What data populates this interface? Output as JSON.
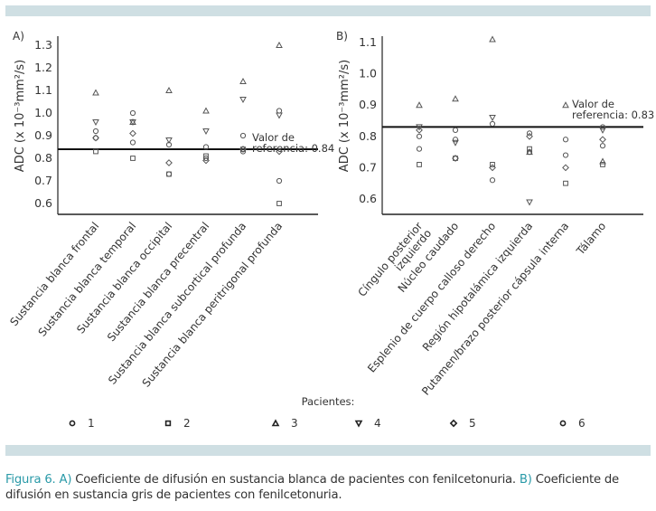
{
  "colors": {
    "band": "#cfdfe3",
    "accent": "#2a9aa8",
    "marker": "#555555"
  },
  "legend": {
    "title": "Pacientes:",
    "items": [
      {
        "label": "1",
        "symbol": "circle"
      },
      {
        "label": "2",
        "symbol": "square"
      },
      {
        "label": "3",
        "symbol": "triangle-up"
      },
      {
        "label": "4",
        "symbol": "triangle-down"
      },
      {
        "label": "5",
        "symbol": "diamond"
      },
      {
        "label": "6",
        "symbol": "circle"
      }
    ]
  },
  "chart_data": [
    {
      "type": "scatter",
      "panel": "A)",
      "ylabel": "ADC (x 10⁻³mm²/s)",
      "ylim": [
        0.55,
        1.35
      ],
      "yticks": [
        "0.6",
        "0.7",
        "0.8",
        "0.9",
        "1.0",
        "1.1",
        "1.2",
        "1.3"
      ],
      "reference": {
        "value": 0.84,
        "label1": "Valor de",
        "label2": "referencia: 0.84"
      },
      "categories": [
        [
          "Sustancia blanca frontal"
        ],
        [
          "Sustancia blanca temporal"
        ],
        [
          "Sustancia blanca occipital"
        ],
        [
          "Sustancia blanca precentral"
        ],
        [
          "Sustancia blanca subcortical profunda"
        ],
        [
          "Sustancia blanca peritrigonal profunda"
        ]
      ],
      "series": [
        {
          "name": "1",
          "symbol": "circle",
          "values": [
            0.92,
            1.0,
            0.86,
            0.85,
            0.9,
            1.01
          ]
        },
        {
          "name": "2",
          "symbol": "square",
          "values": [
            0.83,
            0.8,
            0.73,
            0.81,
            0.84,
            0.6
          ]
        },
        {
          "name": "3",
          "symbol": "triangle-up",
          "values": [
            1.09,
            0.96,
            1.1,
            1.01,
            1.14,
            1.3
          ]
        },
        {
          "name": "4",
          "symbol": "triangle-down",
          "values": [
            0.96,
            0.96,
            0.88,
            0.92,
            1.06,
            0.99
          ]
        },
        {
          "name": "5",
          "symbol": "diamond",
          "values": [
            0.89,
            0.91,
            0.78,
            0.79,
            0.84,
            0.83
          ]
        },
        {
          "name": "6",
          "symbol": "circle",
          "values": [
            0.89,
            0.87,
            0.73,
            0.8,
            0.83,
            0.7
          ]
        }
      ]
    },
    {
      "type": "scatter",
      "panel": "B)",
      "ylabel": "ADC (x 10⁻³mm²/s)",
      "ylim": [
        0.55,
        1.13
      ],
      "yticks": [
        "0.6",
        "0.7",
        "0.8",
        "0.9",
        "1.0",
        "1.1"
      ],
      "reference": {
        "value": 0.83,
        "label1": "Valor de",
        "label2": "referencia: 0.83"
      },
      "categories": [
        [
          "Cíngulo posterior",
          "izquierdo"
        ],
        [
          "Núcleo caudado"
        ],
        [
          "Esplenio de cuerpo calloso derecho"
        ],
        [
          "Región hipotalámica izquierda"
        ],
        [
          "Putamen/brazo posterior cápsula interna"
        ],
        [
          "Tálamo"
        ]
      ],
      "series": [
        {
          "name": "1",
          "symbol": "circle",
          "values": [
            0.8,
            0.82,
            0.84,
            0.81,
            0.79,
            0.77
          ]
        },
        {
          "name": "2",
          "symbol": "square",
          "values": [
            0.71,
            0.73,
            0.71,
            0.76,
            0.65,
            0.71
          ]
        },
        {
          "name": "3",
          "symbol": "triangle-up",
          "values": [
            0.9,
            0.92,
            1.11,
            0.75,
            0.9,
            0.72
          ]
        },
        {
          "name": "4",
          "symbol": "triangle-down",
          "values": [
            0.83,
            0.78,
            0.86,
            0.59,
            null,
            0.82
          ]
        },
        {
          "name": "5",
          "symbol": "diamond",
          "values": [
            0.82,
            0.73,
            0.7,
            0.8,
            0.7,
            0.79
          ]
        },
        {
          "name": "6",
          "symbol": "circle",
          "values": [
            0.76,
            0.79,
            0.66,
            0.75,
            0.74,
            0.83
          ]
        }
      ]
    }
  ],
  "caption": {
    "label": "Figura 6.",
    "a": "A)",
    "a_text": " Coeficiente de difusión en sustancia blanca de pacientes con fenilcetonuria. ",
    "b": "B)",
    "b_text": " Coeficiente de difusión en sustancia gris de pacientes con fenilcetonuria."
  }
}
